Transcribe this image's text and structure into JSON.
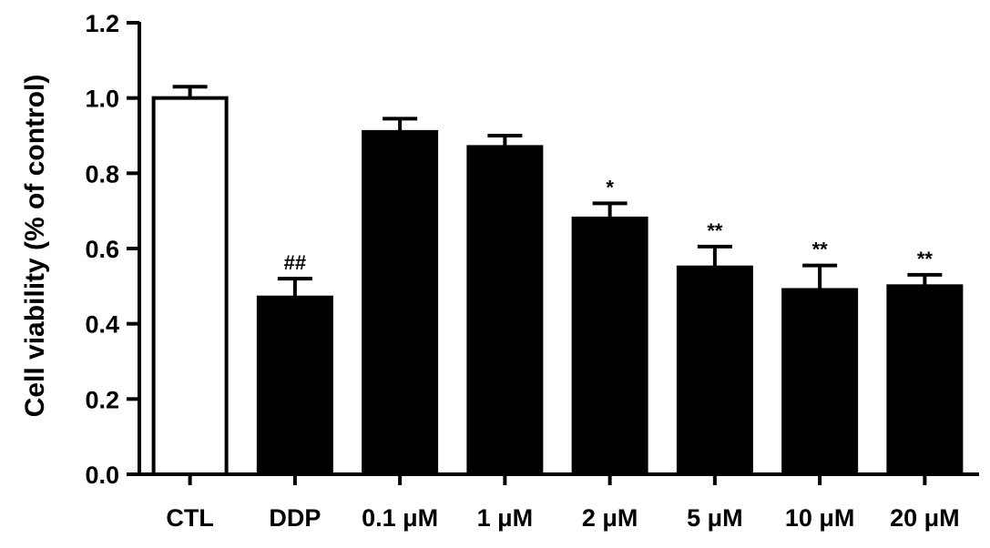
{
  "chart_data": {
    "type": "bar",
    "ylabel": "Cell viability (% of control)",
    "xlabel": "",
    "title": "",
    "ylim": [
      0,
      1.2
    ],
    "yticks": [
      "0.0",
      "0.2",
      "0.4",
      "0.6",
      "0.8",
      "1.0",
      "1.2"
    ],
    "yticks_values": [
      0,
      0.2,
      0.4,
      0.6,
      0.8,
      1.0,
      1.2
    ],
    "categories": [
      "CTL",
      "DDP",
      "0.1 μM",
      "1 μM",
      "2 μM",
      "5 μM",
      "10 μM",
      "20 μM"
    ],
    "values": [
      1.0,
      0.47,
      0.91,
      0.87,
      0.68,
      0.55,
      0.49,
      0.5
    ],
    "errors": [
      0.03,
      0.05,
      0.035,
      0.03,
      0.04,
      0.055,
      0.065,
      0.03
    ],
    "fills": [
      "#ffffff",
      "#000000",
      "#000000",
      "#000000",
      "#000000",
      "#000000",
      "#000000",
      "#000000"
    ],
    "annotations": [
      "",
      "##",
      "",
      "",
      "*",
      "**",
      "**",
      "**"
    ],
    "grid": false,
    "legend": false
  }
}
